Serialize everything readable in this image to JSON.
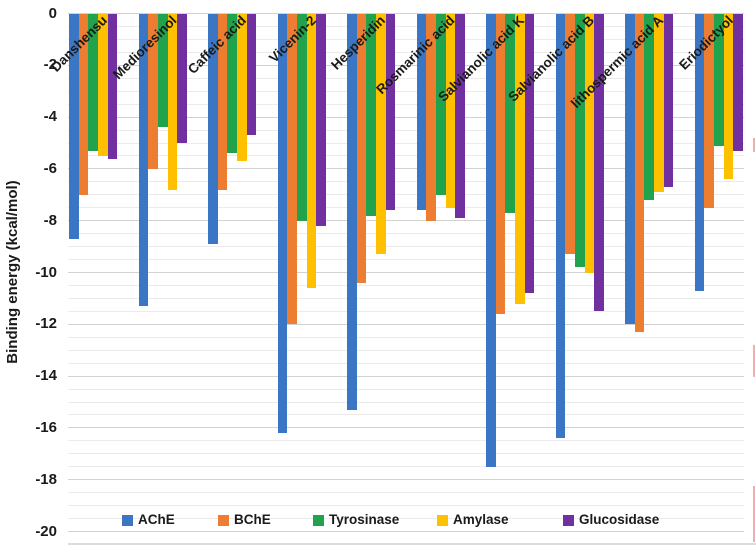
{
  "chart_data": {
    "type": "bar",
    "title": "",
    "ylabel": "Binding energy (kcal/mol)",
    "ylim": [
      0,
      -20
    ],
    "ytick_values": [
      0,
      -2,
      -4,
      -6,
      -8,
      -10,
      -12,
      -14,
      -16,
      -18,
      -20
    ],
    "ytick_labels": [
      "0",
      "-2",
      "-4",
      "-6",
      "-8",
      "-10",
      "-12",
      "-14",
      "-16",
      "-18",
      "-20"
    ],
    "minor_gridline_step": 0.5,
    "grid": "horizontal",
    "legend_position": "bottom-inside",
    "categories": [
      "Danshensu",
      "Medioresinol",
      "Caffeic acid",
      "Vicenin-2",
      "Hesperidin",
      "Rosmarinic acid",
      "Salvianolic acid K",
      "Salvianolic acid B",
      "lithospermic acid A",
      "Eriodictyol"
    ],
    "series": [
      {
        "name": "AChE",
        "color": "#3b76c4",
        "values": [
          -8.7,
          -11.3,
          -8.9,
          -16.2,
          -15.3,
          -7.6,
          -17.5,
          -16.4,
          -12.0,
          -10.7
        ]
      },
      {
        "name": "BChE",
        "color": "#ed7d31",
        "values": [
          -7.0,
          -6.0,
          -6.8,
          -12.0,
          -10.4,
          -8.0,
          -11.6,
          -9.3,
          -12.3,
          -7.5
        ]
      },
      {
        "name": "Tyrosinase",
        "color": "#21a24d",
        "values": [
          -5.3,
          -4.4,
          -5.4,
          -8.0,
          -7.8,
          -7.0,
          -7.7,
          -9.8,
          -7.2,
          -5.1
        ]
      },
      {
        "name": "Amylase",
        "color": "#ffc000",
        "values": [
          -5.5,
          -6.8,
          -5.7,
          -10.6,
          -9.3,
          -7.5,
          -11.2,
          -10.0,
          -6.9,
          -6.4
        ]
      },
      {
        "name": "Glucosidase",
        "color": "#7030a0",
        "values": [
          -5.6,
          -5.0,
          -4.7,
          -8.2,
          -7.6,
          -7.9,
          -10.8,
          -11.5,
          -6.7,
          -5.3
        ]
      }
    ]
  }
}
